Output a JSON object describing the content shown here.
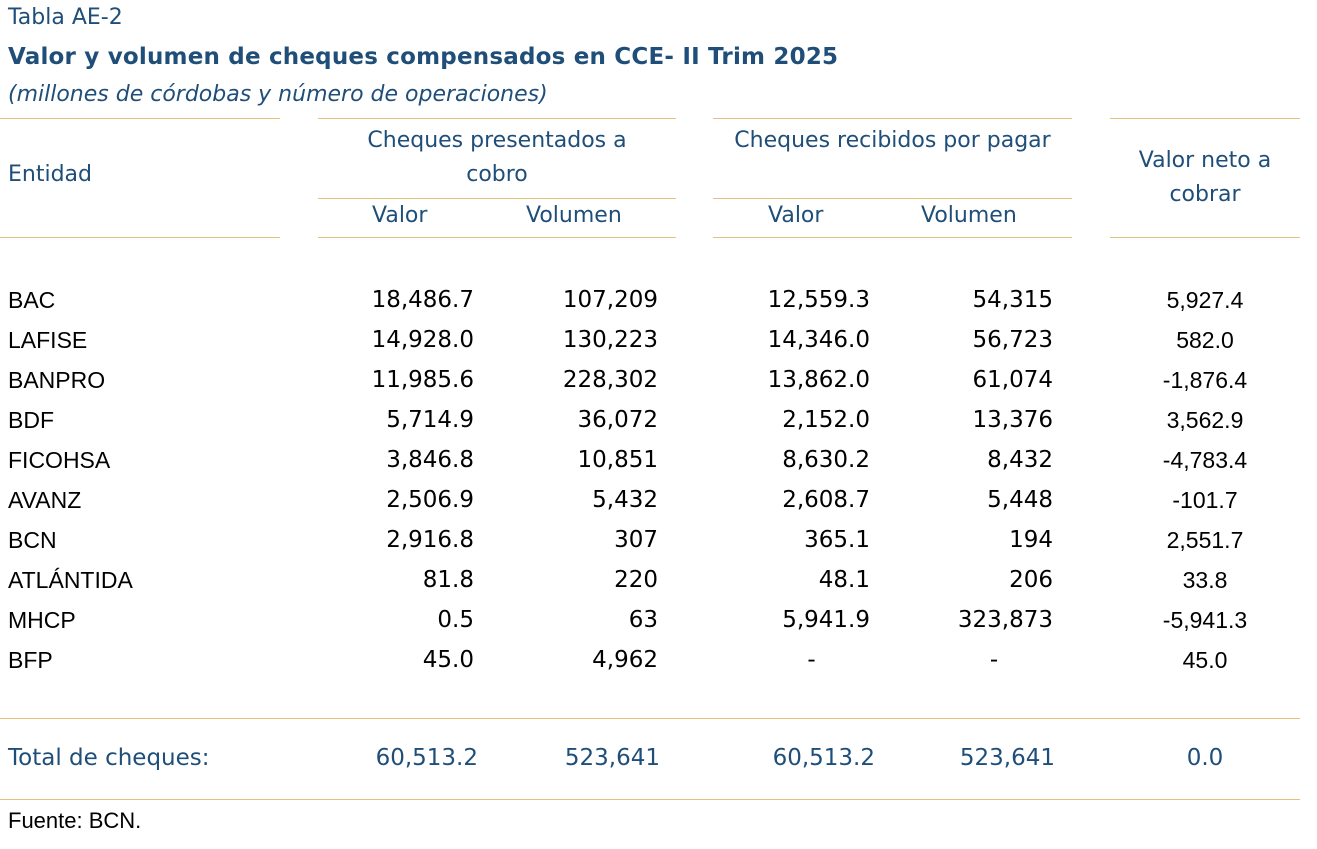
{
  "title": {
    "label": "Tabla AE-2",
    "main": "Valor y volumen de cheques compensados en CCE- II Trim 2025",
    "subtitle": "(millones de córdobas y número de operaciones)"
  },
  "header": {
    "entidad": "Entidad",
    "group_presented": "Cheques presentados a cobro",
    "group_received": "Cheques recibidos por pagar",
    "net": "Valor neto a cobrar",
    "valor": "Valor",
    "volumen": "Volumen"
  },
  "rows": [
    {
      "entidad": "BAC",
      "pres_valor": "18,486.7",
      "pres_volumen": "107,209",
      "rec_valor": "12,559.3",
      "rec_volumen": "54,315",
      "neto": "5,927.4"
    },
    {
      "entidad": "LAFISE",
      "pres_valor": "14,928.0",
      "pres_volumen": "130,223",
      "rec_valor": "14,346.0",
      "rec_volumen": "56,723",
      "neto": "582.0"
    },
    {
      "entidad": "BANPRO",
      "pres_valor": "11,985.6",
      "pres_volumen": "228,302",
      "rec_valor": "13,862.0",
      "rec_volumen": "61,074",
      "neto": "-1,876.4"
    },
    {
      "entidad": "BDF",
      "pres_valor": "5,714.9",
      "pres_volumen": "36,072",
      "rec_valor": "2,152.0",
      "rec_volumen": "13,376",
      "neto": "3,562.9"
    },
    {
      "entidad": "FICOHSA",
      "pres_valor": "3,846.8",
      "pres_volumen": "10,851",
      "rec_valor": "8,630.2",
      "rec_volumen": "8,432",
      "neto": "-4,783.4"
    },
    {
      "entidad": "AVANZ",
      "pres_valor": "2,506.9",
      "pres_volumen": "5,432",
      "rec_valor": "2,608.7",
      "rec_volumen": "5,448",
      "neto": "-101.7"
    },
    {
      "entidad": "BCN",
      "pres_valor": "2,916.8",
      "pres_volumen": "307",
      "rec_valor": "365.1",
      "rec_volumen": "194",
      "neto": "2,551.7"
    },
    {
      "entidad": "ATLÁNTIDA",
      "pres_valor": "81.8",
      "pres_volumen": "220",
      "rec_valor": "48.1",
      "rec_volumen": "206",
      "neto": "33.8"
    },
    {
      "entidad": "MHCP",
      "pres_valor": "0.5",
      "pres_volumen": "63",
      "rec_valor": "5,941.9",
      "rec_volumen": "323,873",
      "neto": "-5,941.3"
    },
    {
      "entidad": "BFP",
      "pres_valor": "45.0",
      "pres_volumen": "4,962",
      "rec_valor": "-",
      "rec_volumen": "-",
      "neto": "45.0"
    }
  ],
  "total": {
    "label": "Total de cheques:",
    "pres_valor": "60,513.2",
    "pres_volumen": "523,641",
    "rec_valor": "60,513.2",
    "rec_volumen": "523,641",
    "neto": "0.0"
  },
  "source": "Fuente: BCN."
}
